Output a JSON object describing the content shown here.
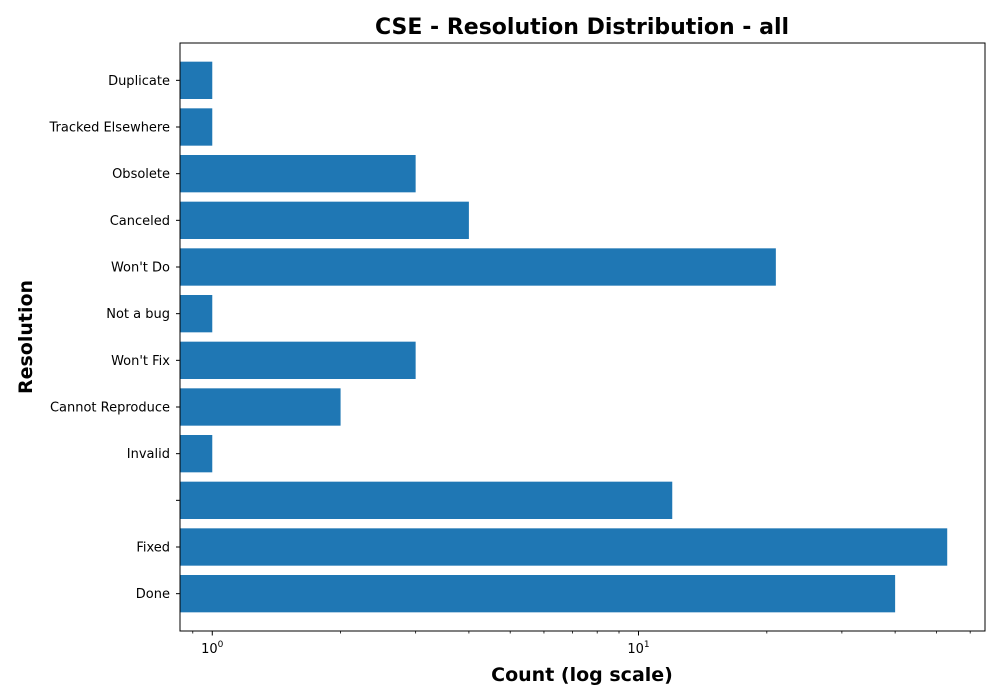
{
  "chart_data": {
    "type": "bar",
    "orientation": "horizontal",
    "title": "CSE - Resolution Distribution - all",
    "xlabel": "Count (log scale)",
    "ylabel": "Resolution",
    "xscale": "log",
    "xlim": [
      0.84,
      65
    ],
    "categories": [
      "Done",
      "Fixed",
      "",
      "Invalid",
      "Cannot Reproduce",
      "Won't Fix",
      "Not a bug",
      "Won't Do",
      "Canceled",
      "Obsolete",
      "Tracked Elsewhere",
      "Duplicate"
    ],
    "values": [
      40,
      53,
      12,
      1,
      2,
      3,
      1,
      21,
      4,
      3,
      1,
      1
    ],
    "x_ticks": [
      {
        "base": "10",
        "exp": "0",
        "value": 1
      },
      {
        "base": "10",
        "exp": "1",
        "value": 10
      }
    ],
    "bar_color": "#1f77b4",
    "grid": false
  }
}
